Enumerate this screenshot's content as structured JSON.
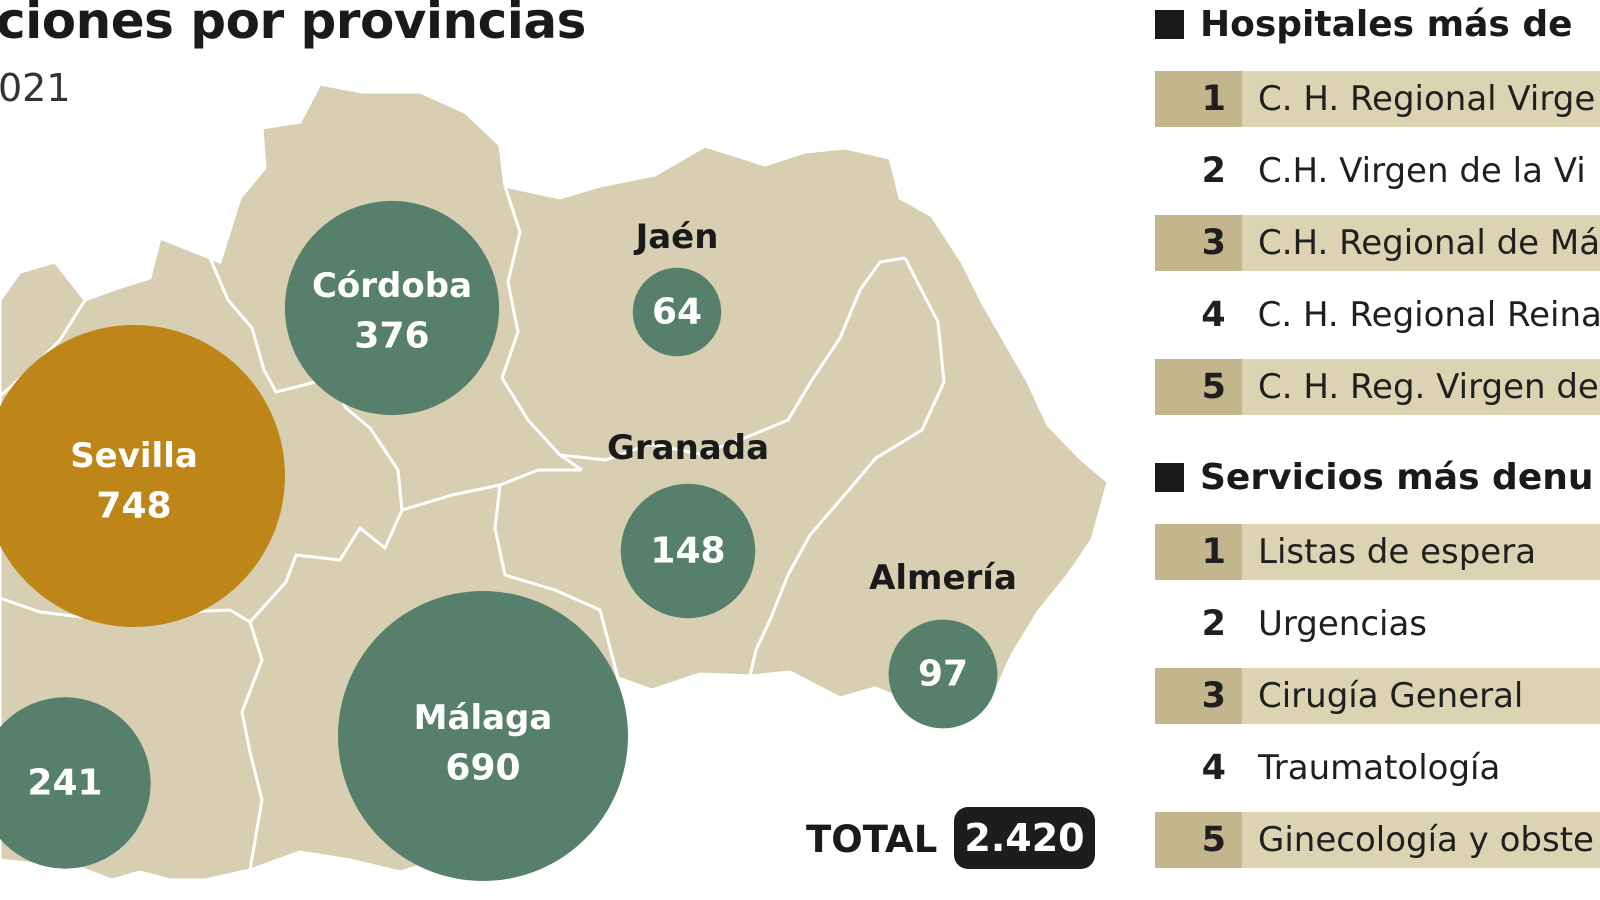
{
  "header": {
    "title": "ciones por provincias",
    "subtitle": "021"
  },
  "colors": {
    "map_fill": "#d8cfb2",
    "border": "#ffffff",
    "bubble_green": "#567f6c",
    "bubble_highlight": "#be8619",
    "row_shaded": "#dcd3b3",
    "rank_shaded": "#c3b68d"
  },
  "map": {
    "provinces": [
      {
        "name": "Córdoba",
        "value": 376,
        "highlight": false
      },
      {
        "name": "Jaén",
        "value": 64,
        "highlight": false
      },
      {
        "name": "Sevilla",
        "value": 748,
        "highlight": true
      },
      {
        "name": "Granada",
        "value": 148,
        "highlight": false
      },
      {
        "name": "Almería",
        "value": 97,
        "highlight": false
      },
      {
        "name": "Málaga",
        "value": 690,
        "highlight": false
      },
      {
        "name": "",
        "value": 241,
        "highlight": false
      }
    ],
    "total_label": "TOTAL",
    "total_value": "2.420"
  },
  "hospitals": {
    "title": "Hospitales más  de",
    "items": [
      {
        "rank": "1",
        "label": "C. H. Regional Virge"
      },
      {
        "rank": "2",
        "label": "C.H. Virgen de la Vi"
      },
      {
        "rank": "3",
        "label": "C.H. Regional de Má"
      },
      {
        "rank": "4",
        "label": "C. H. Regional Reina"
      },
      {
        "rank": "5",
        "label": "C. H. Reg. Virgen de"
      }
    ]
  },
  "services": {
    "title": "Servicios más denu",
    "items": [
      {
        "rank": "1",
        "label": "Listas de espera"
      },
      {
        "rank": "2",
        "label": "Urgencias"
      },
      {
        "rank": "3",
        "label": "Cirugía General"
      },
      {
        "rank": "4",
        "label": "Traumatología"
      },
      {
        "rank": "5",
        "label": "Ginecología y obste"
      }
    ]
  }
}
